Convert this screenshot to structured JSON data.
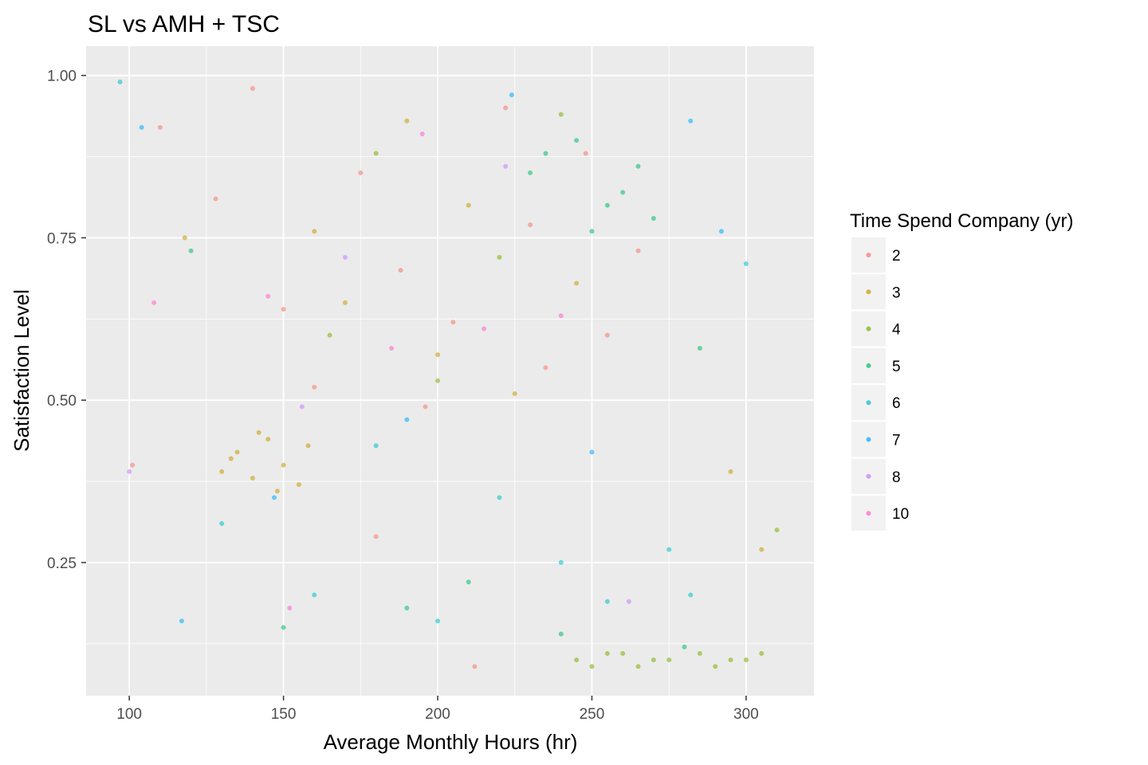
{
  "chart_data": {
    "type": "scatter",
    "title": "SL vs AMH + TSC",
    "xlabel": "Average Monthly Hours (hr)",
    "ylabel": "Satisfaction Level",
    "xlim": [
      86,
      322
    ],
    "ylim": [
      0.045,
      1.045
    ],
    "x_ticks": [
      100,
      150,
      200,
      250,
      300
    ],
    "y_ticks": [
      0.25,
      0.5,
      0.75,
      1.0
    ],
    "x_tick_labels": [
      "100",
      "150",
      "200",
      "250",
      "300"
    ],
    "y_tick_labels": [
      "0.25",
      "0.50",
      "0.75",
      "1.00"
    ],
    "grid": true,
    "legend": {
      "title": "Time Spend Company (yr)",
      "placement": "right",
      "entries": [
        {
          "label": "2",
          "color": "#F8766D"
        },
        {
          "label": "3",
          "color": "#C49A00"
        },
        {
          "label": "4",
          "color": "#7CAE00"
        },
        {
          "label": "5",
          "color": "#00BE67"
        },
        {
          "label": "6",
          "color": "#00BFC4"
        },
        {
          "label": "7",
          "color": "#00A9FF"
        },
        {
          "label": "8",
          "color": "#C77CFF"
        },
        {
          "label": "10",
          "color": "#FF61CC"
        }
      ]
    },
    "series": [
      {
        "name": "2",
        "color": "#F8766D",
        "points": [
          [
            110,
            0.92
          ],
          [
            140,
            0.98
          ],
          [
            175,
            0.85
          ],
          [
            188,
            0.7
          ],
          [
            205,
            0.62
          ],
          [
            222,
            0.95
          ],
          [
            235,
            0.55
          ],
          [
            160,
            0.52
          ],
          [
            101,
            0.4
          ],
          [
            128,
            0.81
          ],
          [
            196,
            0.49
          ],
          [
            248,
            0.88
          ],
          [
            265,
            0.73
          ],
          [
            212,
            0.09
          ],
          [
            180,
            0.29
          ],
          [
            255,
            0.6
          ],
          [
            150,
            0.64
          ],
          [
            230,
            0.77
          ]
        ]
      },
      {
        "name": "3",
        "color": "#C49A00",
        "points": [
          [
            135,
            0.42
          ],
          [
            140,
            0.38
          ],
          [
            145,
            0.44
          ],
          [
            150,
            0.4
          ],
          [
            155,
            0.37
          ],
          [
            130,
            0.39
          ],
          [
            158,
            0.43
          ],
          [
            142,
            0.45
          ],
          [
            148,
            0.36
          ],
          [
            133,
            0.41
          ],
          [
            170,
            0.65
          ],
          [
            210,
            0.8
          ],
          [
            190,
            0.93
          ],
          [
            225,
            0.51
          ],
          [
            245,
            0.68
          ],
          [
            160,
            0.76
          ],
          [
            200,
            0.57
          ],
          [
            305,
            0.27
          ],
          [
            295,
            0.39
          ],
          [
            118,
            0.75
          ]
        ]
      },
      {
        "name": "4",
        "color": "#7CAE00",
        "points": [
          [
            245,
            0.1
          ],
          [
            255,
            0.11
          ],
          [
            265,
            0.09
          ],
          [
            275,
            0.1
          ],
          [
            285,
            0.11
          ],
          [
            295,
            0.1
          ],
          [
            305,
            0.11
          ],
          [
            250,
            0.09
          ],
          [
            270,
            0.1
          ],
          [
            290,
            0.09
          ],
          [
            300,
            0.1
          ],
          [
            260,
            0.11
          ],
          [
            180,
            0.88
          ],
          [
            220,
            0.72
          ],
          [
            240,
            0.94
          ],
          [
            200,
            0.53
          ],
          [
            165,
            0.6
          ],
          [
            310,
            0.3
          ]
        ]
      },
      {
        "name": "5",
        "color": "#00BE67",
        "points": [
          [
            230,
            0.85
          ],
          [
            245,
            0.9
          ],
          [
            260,
            0.82
          ],
          [
            270,
            0.78
          ],
          [
            250,
            0.76
          ],
          [
            235,
            0.88
          ],
          [
            265,
            0.86
          ],
          [
            255,
            0.8
          ],
          [
            210,
            0.22
          ],
          [
            190,
            0.18
          ],
          [
            150,
            0.15
          ],
          [
            280,
            0.12
          ],
          [
            240,
            0.14
          ],
          [
            120,
            0.73
          ],
          [
            285,
            0.58
          ]
        ]
      },
      {
        "name": "6",
        "color": "#00BFC4",
        "points": [
          [
            97,
            0.99
          ],
          [
            160,
            0.2
          ],
          [
            200,
            0.16
          ],
          [
            220,
            0.35
          ],
          [
            240,
            0.25
          ],
          [
            180,
            0.43
          ],
          [
            130,
            0.31
          ],
          [
            255,
            0.19
          ],
          [
            275,
            0.27
          ],
          [
            300,
            0.71
          ],
          [
            282,
            0.2
          ]
        ]
      },
      {
        "name": "7",
        "color": "#00A9FF",
        "points": [
          [
            104,
            0.92
          ],
          [
            224,
            0.97
          ],
          [
            282,
            0.93
          ],
          [
            292,
            0.76
          ],
          [
            147,
            0.35
          ],
          [
            190,
            0.47
          ],
          [
            250,
            0.42
          ],
          [
            117,
            0.16
          ]
        ]
      },
      {
        "name": "8",
        "color": "#C77CFF",
        "points": [
          [
            100,
            0.39
          ],
          [
            156,
            0.49
          ],
          [
            222,
            0.86
          ],
          [
            262,
            0.19
          ],
          [
            170,
            0.72
          ]
        ]
      },
      {
        "name": "10",
        "color": "#FF61CC",
        "points": [
          [
            108,
            0.65
          ],
          [
            145,
            0.66
          ],
          [
            185,
            0.58
          ],
          [
            215,
            0.61
          ],
          [
            240,
            0.63
          ],
          [
            152,
            0.18
          ],
          [
            195,
            0.91
          ]
        ]
      }
    ]
  }
}
